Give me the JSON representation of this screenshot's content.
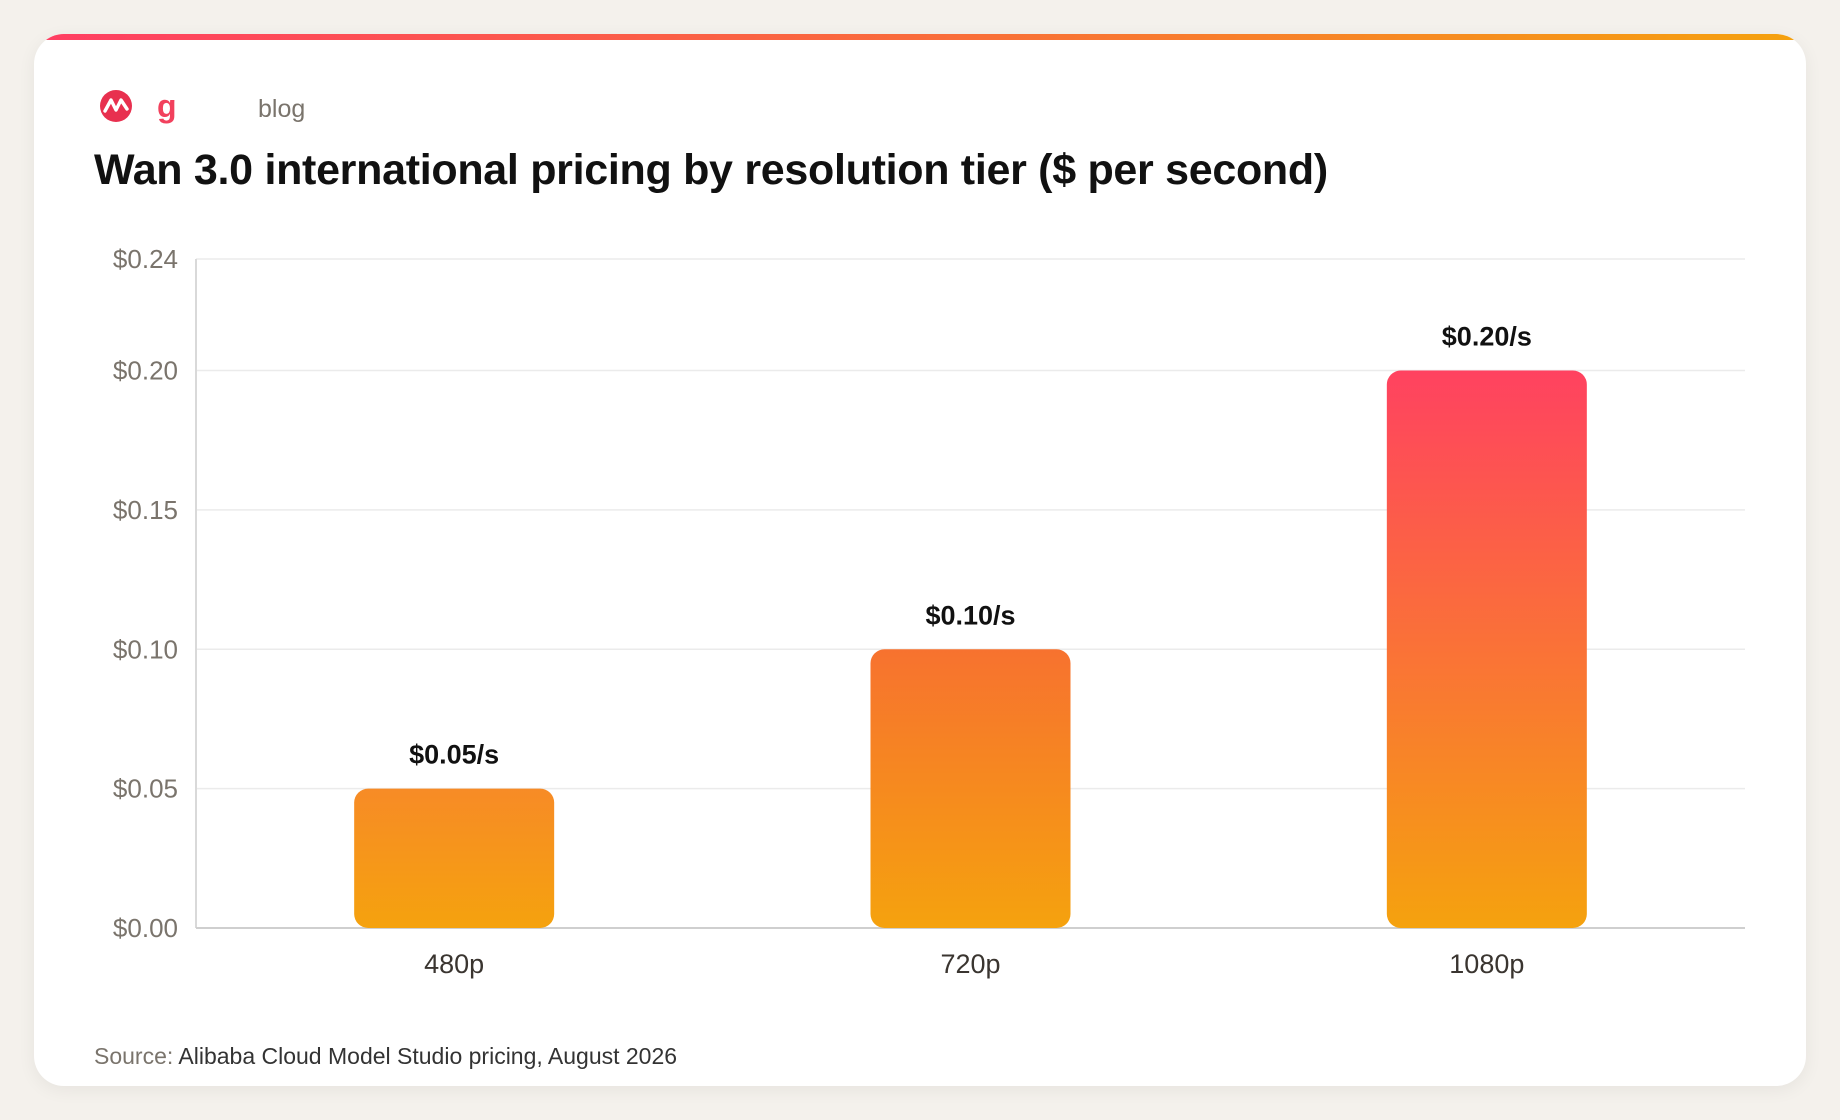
{
  "brand": {
    "logo_letter": "g",
    "section": "blog",
    "accent_colors": [
      "#ff3e63",
      "#f96b3b",
      "#f5a20e"
    ]
  },
  "chart_data": {
    "type": "bar",
    "title": "Wan 3.0 international pricing by resolution tier ($ per second)",
    "categories": [
      "480p",
      "720p",
      "1080p"
    ],
    "values": [
      0.05,
      0.1,
      0.2
    ],
    "data_labels": [
      "$0.05/s",
      "$0.10/s",
      "$0.20/s"
    ],
    "y_ticks": [
      0,
      0.05,
      0.1,
      0.15,
      0.2,
      0.24
    ],
    "y_tick_labels": [
      "$0.00",
      "$0.05",
      "$0.10",
      "$0.15",
      "$0.20",
      "$0.24"
    ],
    "ylim": [
      0,
      0.24
    ],
    "grid": true,
    "legend": "none",
    "bar_gradient_top": [
      "#f78b26",
      "#f7722f",
      "#ff4260"
    ],
    "bar_gradient_bottom": "#f5a20e"
  },
  "footer": {
    "source_label": "Source:",
    "source_text": "Alibaba Cloud Model Studio pricing, August 2026"
  }
}
